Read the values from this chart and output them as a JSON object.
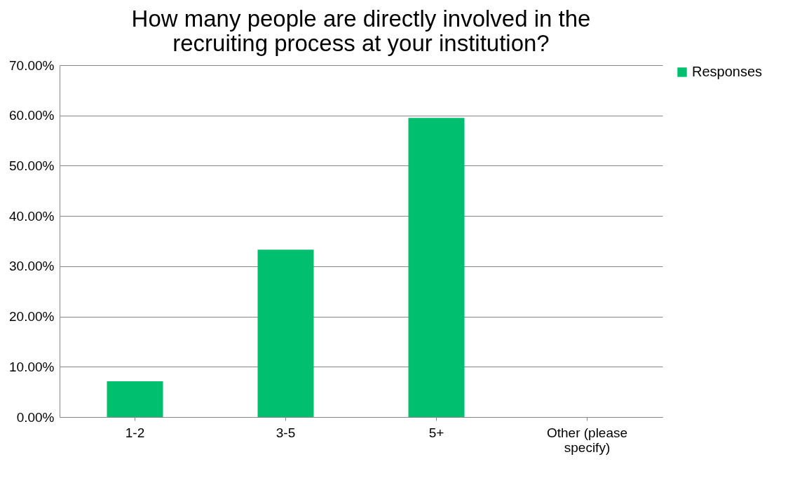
{
  "chart_data": {
    "type": "bar",
    "title": "How many people are directly involved in the recruiting process at your institution?",
    "categories": [
      "1-2",
      "3-5",
      "5+",
      "Other (please specify)"
    ],
    "series": [
      {
        "name": "Responses",
        "color": "#00bf6f",
        "values": [
          7.1,
          33.3,
          59.5,
          0
        ]
      }
    ],
    "ylim": [
      0,
      70
    ],
    "yticks": [
      {
        "value": 0,
        "label": "0.00%"
      },
      {
        "value": 10,
        "label": "10.00%"
      },
      {
        "value": 20,
        "label": "20.00%"
      },
      {
        "value": 30,
        "label": "30.00%"
      },
      {
        "value": 40,
        "label": "40.00%"
      },
      {
        "value": 50,
        "label": "50.00%"
      },
      {
        "value": 60,
        "label": "60.00%"
      },
      {
        "value": 70,
        "label": "70.00%"
      }
    ],
    "grid": "y",
    "legend": "right"
  }
}
